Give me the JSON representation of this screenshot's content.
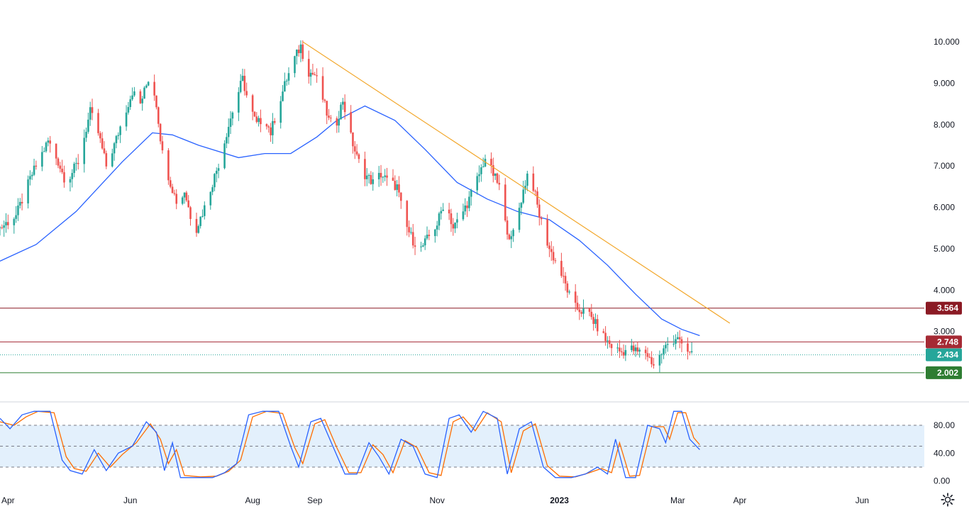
{
  "chart_data": [
    {
      "type": "candlestick",
      "title": "",
      "y_ticks": [
        "10.000",
        "9.000",
        "8.000",
        "7.000",
        "6.000",
        "5.000",
        "4.000",
        "3.000"
      ],
      "x_ticks": [
        {
          "label": "Apr",
          "date": "2022-04-01"
        },
        {
          "label": "Jun",
          "date": "2022-06-01"
        },
        {
          "label": "Aug",
          "date": "2022-08-01"
        },
        {
          "label": "Sep",
          "date": "2022-09-01"
        },
        {
          "label": "Nov",
          "date": "2022-11-01"
        },
        {
          "label": "2023",
          "date": "2023-01-01",
          "bold": true
        },
        {
          "label": "Mar",
          "date": "2023-03-01"
        },
        {
          "label": "Apr",
          "date": "2023-04-01"
        },
        {
          "label": "Jun",
          "date": "2023-06-01"
        }
      ],
      "x_range": [
        "2022-03-28",
        "2023-07-02"
      ],
      "ylim": [
        1.8,
        10.5
      ],
      "closes": [
        [
          "2022-03-28",
          5.5
        ],
        [
          "2022-04-05",
          5.8
        ],
        [
          "2022-04-13",
          6.8
        ],
        [
          "2022-04-21",
          7.6
        ],
        [
          "2022-04-26",
          7.1
        ],
        [
          "2022-04-30",
          6.6
        ],
        [
          "2022-05-06",
          7.1
        ],
        [
          "2022-05-12",
          8.3
        ],
        [
          "2022-05-16",
          7.8
        ],
        [
          "2022-05-20",
          7.0
        ],
        [
          "2022-05-24",
          7.5
        ],
        [
          "2022-05-28",
          8.1
        ],
        [
          "2022-06-02",
          8.8
        ],
        [
          "2022-06-06",
          8.5
        ],
        [
          "2022-06-10",
          9.1
        ],
        [
          "2022-06-12",
          9.0
        ],
        [
          "2022-06-14",
          8.5
        ],
        [
          "2022-06-17",
          7.3
        ],
        [
          "2022-06-21",
          6.6
        ],
        [
          "2022-06-25",
          6.0
        ],
        [
          "2022-06-28",
          6.4
        ],
        [
          "2022-07-01",
          5.8
        ],
        [
          "2022-07-04",
          5.5
        ],
        [
          "2022-07-08",
          6.0
        ],
        [
          "2022-07-12",
          6.6
        ],
        [
          "2022-07-16",
          7.2
        ],
        [
          "2022-07-19",
          7.8
        ],
        [
          "2022-07-23",
          8.5
        ],
        [
          "2022-07-27",
          9.1
        ],
        [
          "2022-07-30",
          8.5
        ],
        [
          "2022-08-03",
          8.0
        ],
        [
          "2022-08-07",
          8.2
        ],
        [
          "2022-08-10",
          7.8
        ],
        [
          "2022-08-14",
          8.5
        ],
        [
          "2022-08-18",
          9.1
        ],
        [
          "2022-08-22",
          9.6
        ],
        [
          "2022-08-25",
          9.9
        ],
        [
          "2022-08-28",
          9.3
        ],
        [
          "2022-09-01",
          9.2
        ],
        [
          "2022-09-04",
          8.8
        ],
        [
          "2022-09-08",
          8.1
        ],
        [
          "2022-09-11",
          7.9
        ],
        [
          "2022-09-15",
          8.6
        ],
        [
          "2022-09-19",
          7.7
        ],
        [
          "2022-09-22",
          7.2
        ],
        [
          "2022-09-26",
          6.8
        ],
        [
          "2022-09-30",
          6.6
        ],
        [
          "2022-10-04",
          6.8
        ],
        [
          "2022-10-08",
          6.6
        ],
        [
          "2022-10-12",
          6.5
        ],
        [
          "2022-10-16",
          5.6
        ],
        [
          "2022-10-20",
          5.2
        ],
        [
          "2022-10-24",
          5.0
        ],
        [
          "2022-10-28",
          5.3
        ],
        [
          "2022-11-01",
          5.6
        ],
        [
          "2022-11-05",
          6.2
        ],
        [
          "2022-11-09",
          5.5
        ],
        [
          "2022-11-13",
          5.8
        ],
        [
          "2022-11-17",
          6.2
        ],
        [
          "2022-11-22",
          6.8
        ],
        [
          "2022-11-25",
          7.2
        ],
        [
          "2022-11-28",
          6.9
        ],
        [
          "2022-12-02",
          6.5
        ],
        [
          "2022-12-05",
          5.6
        ],
        [
          "2022-12-08",
          5.2
        ],
        [
          "2022-12-12",
          6.0
        ],
        [
          "2022-12-16",
          6.8
        ],
        [
          "2022-12-19",
          6.5
        ],
        [
          "2022-12-22",
          5.8
        ],
        [
          "2022-12-27",
          5.0
        ],
        [
          "2023-01-01",
          4.5
        ],
        [
          "2023-01-05",
          4.0
        ],
        [
          "2023-01-08",
          3.6
        ],
        [
          "2023-01-12",
          3.5
        ],
        [
          "2023-01-16",
          3.4
        ],
        [
          "2023-01-20",
          3.1
        ],
        [
          "2023-01-24",
          2.8
        ],
        [
          "2023-01-28",
          2.6
        ],
        [
          "2023-02-01",
          2.5
        ],
        [
          "2023-02-05",
          2.6
        ],
        [
          "2023-02-09",
          2.5
        ],
        [
          "2023-02-13",
          2.5
        ],
        [
          "2023-02-17",
          2.2
        ],
        [
          "2023-02-20",
          2.4
        ],
        [
          "2023-02-24",
          2.7
        ],
        [
          "2023-02-27",
          2.8
        ],
        [
          "2023-03-01",
          2.9
        ],
        [
          "2023-03-03",
          2.6
        ],
        [
          "2023-03-06",
          2.5
        ],
        [
          "2023-03-09",
          2.434
        ]
      ],
      "moving_average": [
        [
          "2022-03-28",
          4.7
        ],
        [
          "2022-04-15",
          5.1
        ],
        [
          "2022-05-05",
          5.9
        ],
        [
          "2022-05-28",
          7.1
        ],
        [
          "2022-06-12",
          7.8
        ],
        [
          "2022-06-22",
          7.75
        ],
        [
          "2022-07-05",
          7.5
        ],
        [
          "2022-07-25",
          7.2
        ],
        [
          "2022-08-07",
          7.3
        ],
        [
          "2022-08-20",
          7.3
        ],
        [
          "2022-09-02",
          7.7
        ],
        [
          "2022-09-12",
          8.1
        ],
        [
          "2022-09-26",
          8.45
        ],
        [
          "2022-10-11",
          8.1
        ],
        [
          "2022-10-26",
          7.4
        ],
        [
          "2022-11-11",
          6.6
        ],
        [
          "2022-11-26",
          6.2
        ],
        [
          "2022-12-11",
          5.9
        ],
        [
          "2022-12-27",
          5.7
        ],
        [
          "2023-01-11",
          5.2
        ],
        [
          "2023-01-25",
          4.6
        ],
        [
          "2023-02-08",
          3.9
        ],
        [
          "2023-02-21",
          3.3
        ],
        [
          "2023-03-03",
          3.05
        ],
        [
          "2023-03-12",
          2.9
        ]
      ],
      "trendline": {
        "from": [
          "2022-08-26",
          10.0
        ],
        "to": [
          "2023-03-27",
          3.2
        ],
        "color": "#f2a72b"
      },
      "levels": [
        {
          "value": 3.564,
          "label": "3.564",
          "color": "#8b1a24"
        },
        {
          "value": 2.748,
          "label": "2.748",
          "color": "#a52a34"
        },
        {
          "value": 2.434,
          "label": "2.434",
          "color": "#26a69a",
          "dotted": true
        },
        {
          "value": 2.002,
          "label": "2.002",
          "color": "#2e7d32"
        }
      ],
      "colors": {
        "up": "#26a69a",
        "down": "#ef5350",
        "ma": "#2962ff"
      }
    },
    {
      "type": "line",
      "title": "",
      "y_ticks": [
        "80.00",
        "40.00",
        "0.00"
      ],
      "ylim": [
        0,
        110
      ],
      "band": [
        20,
        80
      ],
      "midline": 50,
      "k_line": [
        [
          "2022-03-28",
          90
        ],
        [
          "2022-04-02",
          75
        ],
        [
          "2022-04-08",
          95
        ],
        [
          "2022-04-14",
          100
        ],
        [
          "2022-04-22",
          100
        ],
        [
          "2022-04-28",
          30
        ],
        [
          "2022-05-02",
          15
        ],
        [
          "2022-05-08",
          10
        ],
        [
          "2022-05-14",
          45
        ],
        [
          "2022-05-20",
          15
        ],
        [
          "2022-05-26",
          40
        ],
        [
          "2022-06-02",
          50
        ],
        [
          "2022-06-09",
          85
        ],
        [
          "2022-06-14",
          70
        ],
        [
          "2022-06-18",
          15
        ],
        [
          "2022-06-22",
          55
        ],
        [
          "2022-06-26",
          5
        ],
        [
          "2022-07-04",
          5
        ],
        [
          "2022-07-12",
          5
        ],
        [
          "2022-07-18",
          12
        ],
        [
          "2022-07-24",
          25
        ],
        [
          "2022-07-30",
          95
        ],
        [
          "2022-08-06",
          100
        ],
        [
          "2022-08-14",
          100
        ],
        [
          "2022-08-20",
          50
        ],
        [
          "2022-08-24",
          20
        ],
        [
          "2022-08-30",
          85
        ],
        [
          "2022-09-04",
          90
        ],
        [
          "2022-09-10",
          50
        ],
        [
          "2022-09-16",
          10
        ],
        [
          "2022-09-22",
          10
        ],
        [
          "2022-09-28",
          55
        ],
        [
          "2022-10-03",
          35
        ],
        [
          "2022-10-08",
          10
        ],
        [
          "2022-10-14",
          60
        ],
        [
          "2022-10-20",
          50
        ],
        [
          "2022-10-26",
          10
        ],
        [
          "2022-11-01",
          5
        ],
        [
          "2022-11-07",
          90
        ],
        [
          "2022-11-12",
          95
        ],
        [
          "2022-11-18",
          70
        ],
        [
          "2022-11-24",
          100
        ],
        [
          "2022-12-01",
          90
        ],
        [
          "2022-12-06",
          10
        ],
        [
          "2022-12-12",
          75
        ],
        [
          "2022-12-18",
          85
        ],
        [
          "2022-12-24",
          20
        ],
        [
          "2022-12-30",
          5
        ],
        [
          "2023-01-07",
          5
        ],
        [
          "2023-01-14",
          10
        ],
        [
          "2023-01-20",
          20
        ],
        [
          "2023-01-25",
          10
        ],
        [
          "2023-01-29",
          60
        ],
        [
          "2023-02-03",
          5
        ],
        [
          "2023-02-08",
          5
        ],
        [
          "2023-02-14",
          80
        ],
        [
          "2023-02-20",
          75
        ],
        [
          "2023-02-23",
          55
        ],
        [
          "2023-02-27",
          100
        ],
        [
          "2023-03-03",
          100
        ],
        [
          "2023-03-07",
          60
        ],
        [
          "2023-03-12",
          45
        ]
      ],
      "d_line": [
        [
          "2022-03-28",
          85
        ],
        [
          "2022-04-04",
          80
        ],
        [
          "2022-04-10",
          92
        ],
        [
          "2022-04-16",
          100
        ],
        [
          "2022-04-24",
          98
        ],
        [
          "2022-04-30",
          35
        ],
        [
          "2022-05-04",
          18
        ],
        [
          "2022-05-10",
          14
        ],
        [
          "2022-05-16",
          40
        ],
        [
          "2022-05-22",
          20
        ],
        [
          "2022-05-28",
          38
        ],
        [
          "2022-06-04",
          55
        ],
        [
          "2022-06-11",
          82
        ],
        [
          "2022-06-16",
          60
        ],
        [
          "2022-06-20",
          25
        ],
        [
          "2022-06-24",
          45
        ],
        [
          "2022-06-28",
          8
        ],
        [
          "2022-07-06",
          6
        ],
        [
          "2022-07-14",
          7
        ],
        [
          "2022-07-20",
          14
        ],
        [
          "2022-07-26",
          30
        ],
        [
          "2022-08-01",
          92
        ],
        [
          "2022-08-08",
          100
        ],
        [
          "2022-08-16",
          97
        ],
        [
          "2022-08-22",
          48
        ],
        [
          "2022-08-26",
          25
        ],
        [
          "2022-09-01",
          82
        ],
        [
          "2022-09-06",
          88
        ],
        [
          "2022-09-12",
          48
        ],
        [
          "2022-09-18",
          12
        ],
        [
          "2022-09-24",
          12
        ],
        [
          "2022-09-30",
          52
        ],
        [
          "2022-10-05",
          38
        ],
        [
          "2022-10-10",
          12
        ],
        [
          "2022-10-16",
          58
        ],
        [
          "2022-10-22",
          48
        ],
        [
          "2022-10-28",
          12
        ],
        [
          "2022-11-03",
          8
        ],
        [
          "2022-11-09",
          85
        ],
        [
          "2022-11-14",
          92
        ],
        [
          "2022-11-20",
          72
        ],
        [
          "2022-11-26",
          98
        ],
        [
          "2022-12-03",
          85
        ],
        [
          "2022-12-08",
          12
        ],
        [
          "2022-12-14",
          72
        ],
        [
          "2022-12-20",
          82
        ],
        [
          "2022-12-26",
          22
        ],
        [
          "2023-01-01",
          7
        ],
        [
          "2023-01-09",
          6
        ],
        [
          "2023-01-16",
          12
        ],
        [
          "2023-01-22",
          18
        ],
        [
          "2023-01-27",
          12
        ],
        [
          "2023-01-31",
          55
        ],
        [
          "2023-02-05",
          7
        ],
        [
          "2023-02-10",
          8
        ],
        [
          "2023-02-16",
          78
        ],
        [
          "2023-02-22",
          78
        ],
        [
          "2023-02-25",
          60
        ],
        [
          "2023-03-01",
          98
        ],
        [
          "2023-03-05",
          98
        ],
        [
          "2023-03-09",
          62
        ],
        [
          "2023-03-12",
          52
        ]
      ],
      "colors": {
        "k": "#2962ff",
        "d": "#ff6d00",
        "band": "#e3f0fc"
      }
    }
  ]
}
